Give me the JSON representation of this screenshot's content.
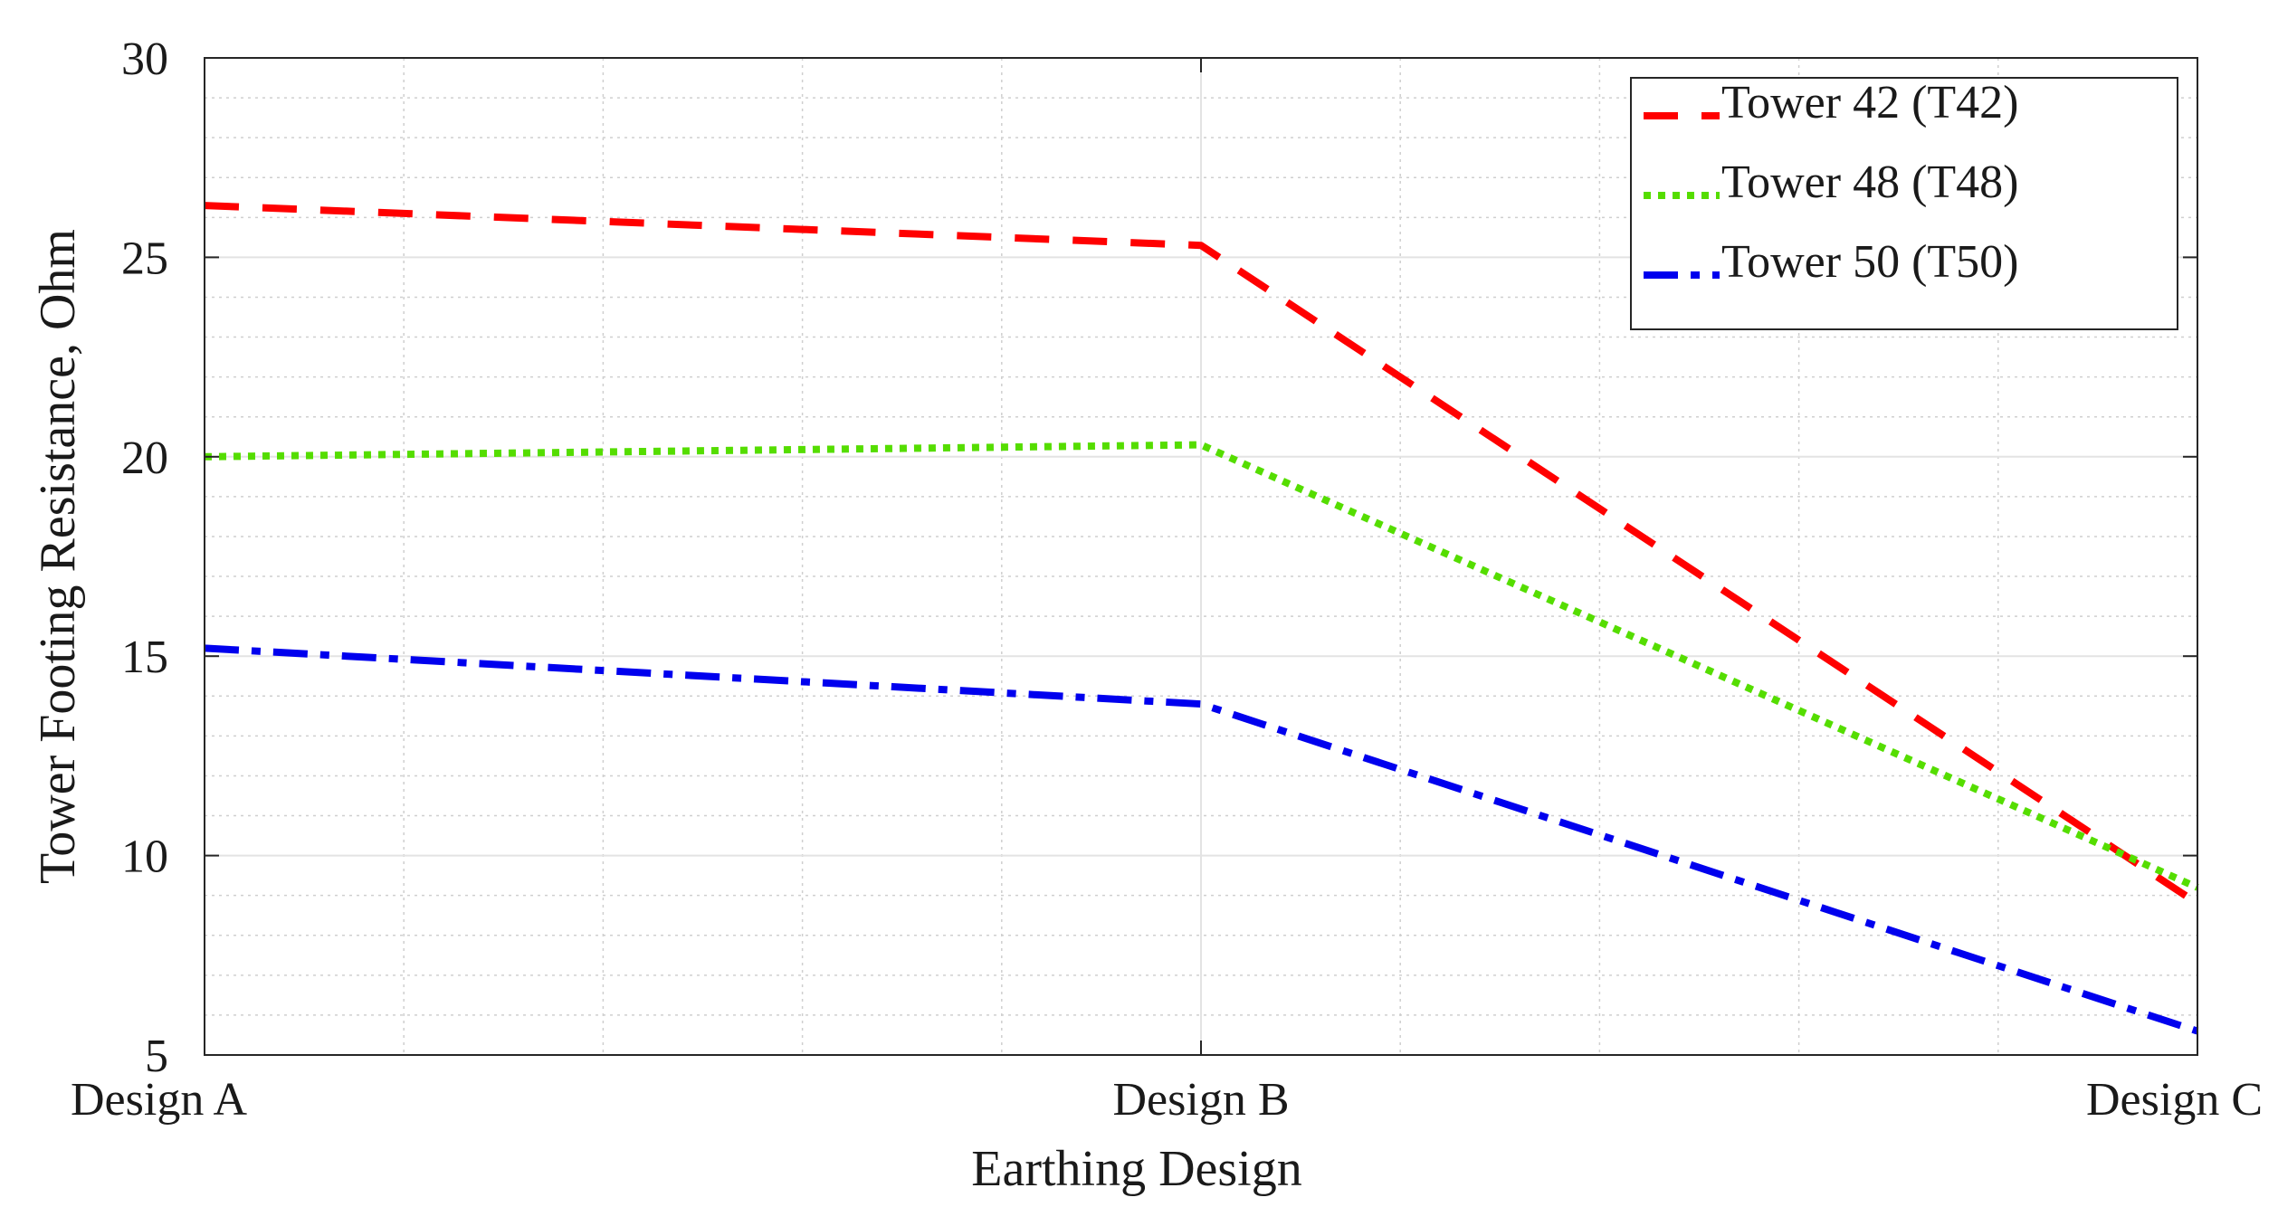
{
  "chart_data": {
    "type": "line",
    "xlabel": "Earthing Design",
    "ylabel": "Tower Footing Resistance, Ohm",
    "categories": [
      "Design A",
      "Design B",
      "Design C"
    ],
    "ylim": [
      5,
      30
    ],
    "yticks": [
      "5",
      "10",
      "15",
      "20",
      "25",
      "30"
    ],
    "grid": true,
    "legend_position": "top-right",
    "series": [
      {
        "name": "Tower 42 (T42)",
        "color": "#ff0000",
        "dash": "dashed",
        "values": [
          26.3,
          25.3,
          8.8
        ]
      },
      {
        "name": "Tower 48 (T48)",
        "color": "#55dd00",
        "dash": "dotted",
        "values": [
          20.0,
          20.3,
          9.2
        ]
      },
      {
        "name": "Tower 50 (T50)",
        "color": "#0000ee",
        "dash": "dash-dot",
        "values": [
          15.2,
          13.8,
          5.6
        ]
      }
    ]
  }
}
